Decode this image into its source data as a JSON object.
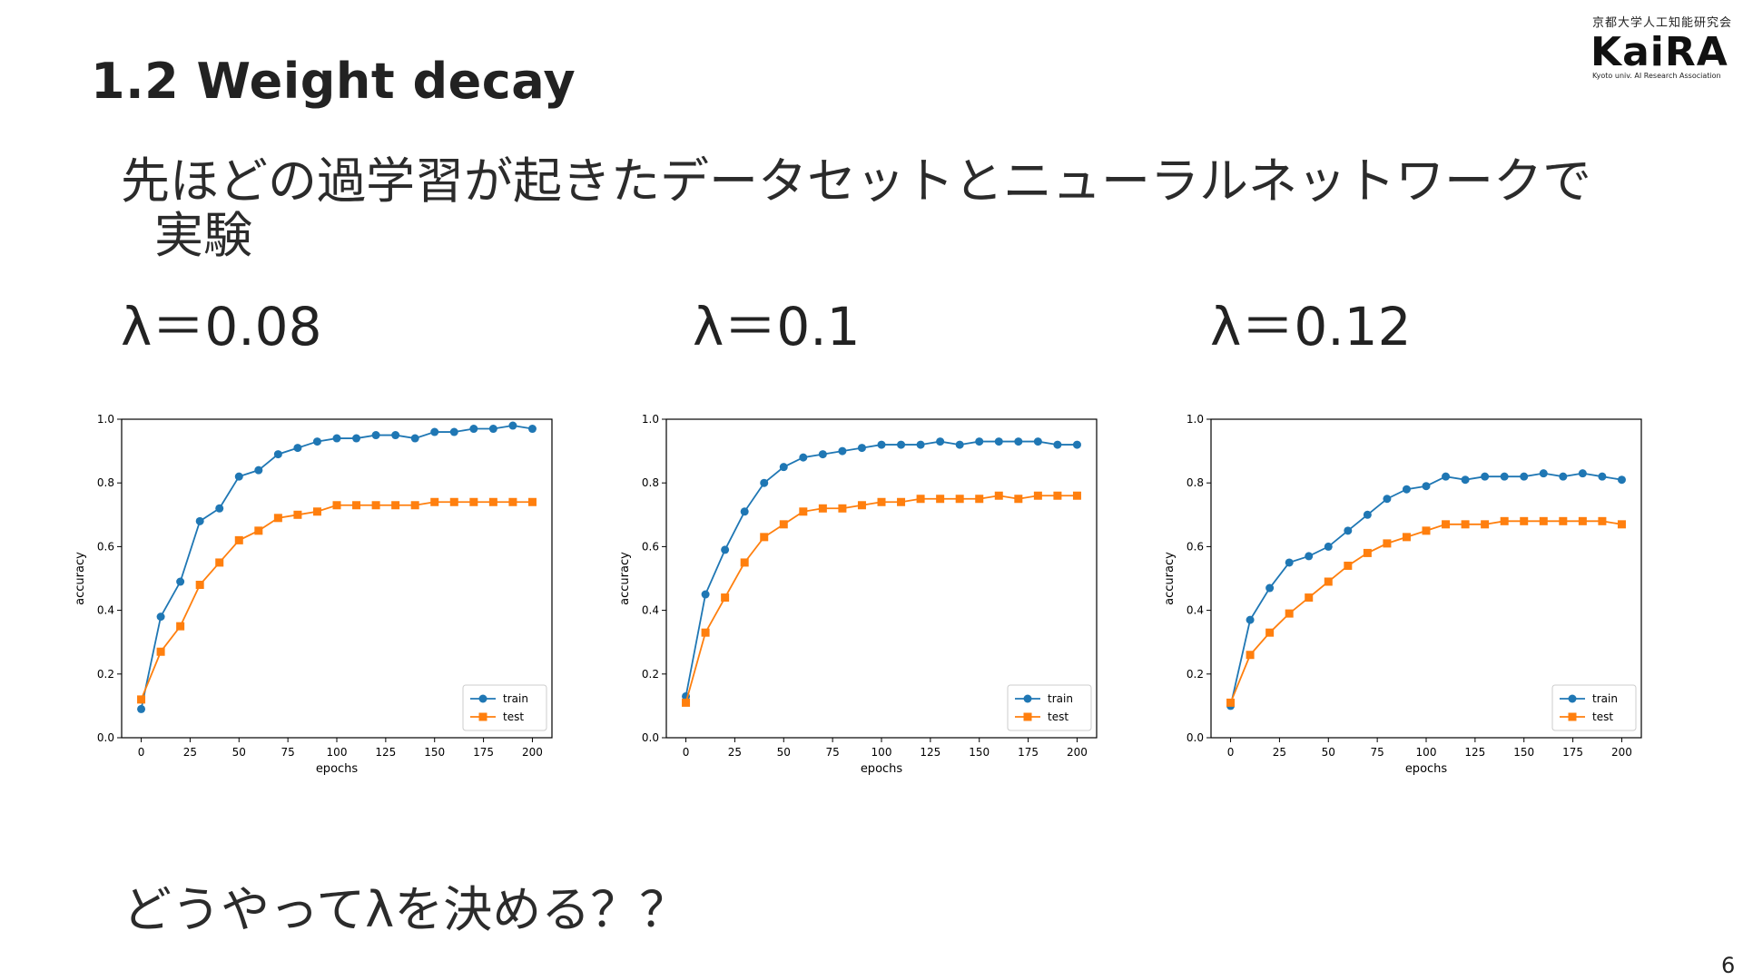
{
  "slide": {
    "title": "1.2 Weight decay",
    "body_line1": "先ほどの過学習が起きたデータセットとニューラルネットワークで",
    "body_line2": "実験",
    "question": "どうやってλを決める？？",
    "page_number": "6"
  },
  "logo": {
    "jp": "京都大学人工知能研究会",
    "brand": "KaiRA",
    "sub": "Kyoto univ. AI Research Association"
  },
  "lambdas": [
    "λ＝0.08",
    "λ＝0.1",
    "λ＝0.12"
  ],
  "colors": {
    "train": "#1f77b4",
    "test": "#ff7f0e"
  },
  "chart_data": [
    {
      "type": "line",
      "xlabel": "epochs",
      "ylabel": "accuracy",
      "xlim": [
        -10,
        210
      ],
      "ylim": [
        0.0,
        1.0
      ],
      "xticks": [
        0,
        25,
        50,
        75,
        100,
        125,
        150,
        175,
        200
      ],
      "yticks": [
        0.0,
        0.2,
        0.4,
        0.6,
        0.8,
        1.0
      ],
      "legend": "lower-right",
      "x": [
        0,
        10,
        20,
        30,
        40,
        50,
        60,
        70,
        80,
        90,
        100,
        110,
        120,
        130,
        140,
        150,
        160,
        170,
        180,
        190,
        200
      ],
      "series": [
        {
          "name": "train",
          "marker": "circle",
          "values": [
            0.09,
            0.38,
            0.49,
            0.68,
            0.72,
            0.82,
            0.84,
            0.89,
            0.91,
            0.93,
            0.94,
            0.94,
            0.95,
            0.95,
            0.94,
            0.96,
            0.96,
            0.97,
            0.97,
            0.98,
            0.97
          ]
        },
        {
          "name": "test",
          "marker": "square",
          "values": [
            0.12,
            0.27,
            0.35,
            0.48,
            0.55,
            0.62,
            0.65,
            0.69,
            0.7,
            0.71,
            0.73,
            0.73,
            0.73,
            0.73,
            0.73,
            0.74,
            0.74,
            0.74,
            0.74,
            0.74,
            0.74
          ]
        }
      ]
    },
    {
      "type": "line",
      "xlabel": "epochs",
      "ylabel": "accuracy",
      "xlim": [
        -10,
        210
      ],
      "ylim": [
        0.0,
        1.0
      ],
      "xticks": [
        0,
        25,
        50,
        75,
        100,
        125,
        150,
        175,
        200
      ],
      "yticks": [
        0.0,
        0.2,
        0.4,
        0.6,
        0.8,
        1.0
      ],
      "legend": "lower-right",
      "x": [
        0,
        10,
        20,
        30,
        40,
        50,
        60,
        70,
        80,
        90,
        100,
        110,
        120,
        130,
        140,
        150,
        160,
        170,
        180,
        190,
        200
      ],
      "series": [
        {
          "name": "train",
          "marker": "circle",
          "values": [
            0.13,
            0.45,
            0.59,
            0.71,
            0.8,
            0.85,
            0.88,
            0.89,
            0.9,
            0.91,
            0.92,
            0.92,
            0.92,
            0.93,
            0.92,
            0.93,
            0.93,
            0.93,
            0.93,
            0.92,
            0.92
          ]
        },
        {
          "name": "test",
          "marker": "square",
          "values": [
            0.11,
            0.33,
            0.44,
            0.55,
            0.63,
            0.67,
            0.71,
            0.72,
            0.72,
            0.73,
            0.74,
            0.74,
            0.75,
            0.75,
            0.75,
            0.75,
            0.76,
            0.75,
            0.76,
            0.76,
            0.76
          ]
        }
      ]
    },
    {
      "type": "line",
      "xlabel": "epochs",
      "ylabel": "accuracy",
      "xlim": [
        -10,
        210
      ],
      "ylim": [
        0.0,
        1.0
      ],
      "xticks": [
        0,
        25,
        50,
        75,
        100,
        125,
        150,
        175,
        200
      ],
      "yticks": [
        0.0,
        0.2,
        0.4,
        0.6,
        0.8,
        1.0
      ],
      "legend": "lower-right",
      "x": [
        0,
        10,
        20,
        30,
        40,
        50,
        60,
        70,
        80,
        90,
        100,
        110,
        120,
        130,
        140,
        150,
        160,
        170,
        180,
        190,
        200
      ],
      "series": [
        {
          "name": "train",
          "marker": "circle",
          "values": [
            0.1,
            0.37,
            0.47,
            0.55,
            0.57,
            0.6,
            0.65,
            0.7,
            0.75,
            0.78,
            0.79,
            0.82,
            0.81,
            0.82,
            0.82,
            0.82,
            0.83,
            0.82,
            0.83,
            0.82,
            0.81
          ]
        },
        {
          "name": "test",
          "marker": "square",
          "values": [
            0.11,
            0.26,
            0.33,
            0.39,
            0.44,
            0.49,
            0.54,
            0.58,
            0.61,
            0.63,
            0.65,
            0.67,
            0.67,
            0.67,
            0.68,
            0.68,
            0.68,
            0.68,
            0.68,
            0.68,
            0.67
          ]
        }
      ]
    }
  ]
}
